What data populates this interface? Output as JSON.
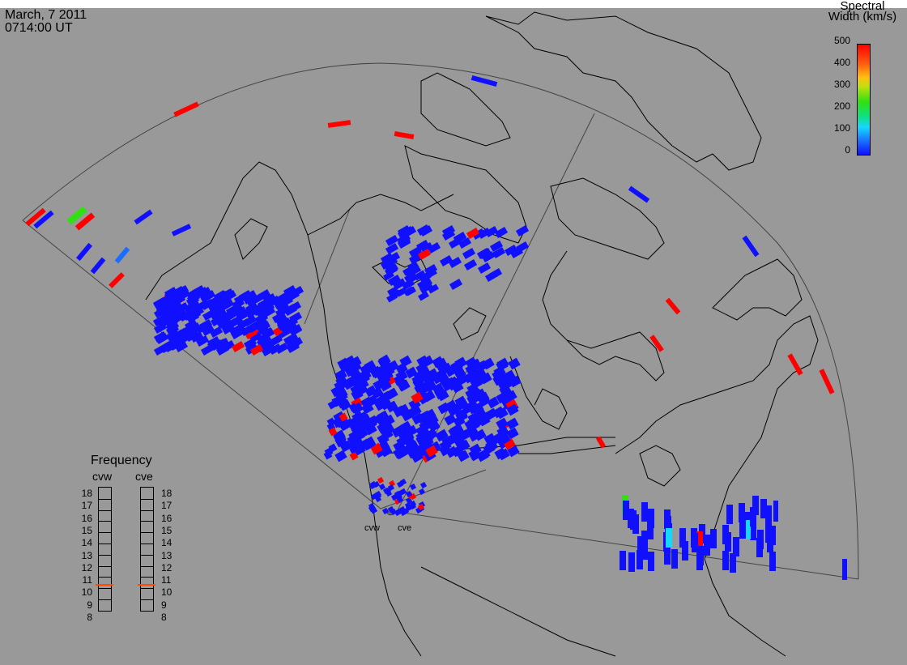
{
  "header": {
    "date": "March, 7 2011",
    "time": "0714:00 UT"
  },
  "legend": {
    "title_line1": "Spectral",
    "title_line2": "Width (km/s)",
    "ticks": [
      "500",
      "400",
      "300",
      "200",
      "100",
      "0"
    ],
    "range": [
      0,
      500
    ],
    "colors": [
      "#1010ff",
      "#15d8ff",
      "#30e010",
      "#ffc010",
      "#ff0000"
    ]
  },
  "frequency_panel": {
    "title": "Frequency",
    "stations": [
      {
        "name": "cvw",
        "frequency_mhz": 10.7
      },
      {
        "name": "cve",
        "frequency_mhz": 10.7
      }
    ],
    "scale": [
      "18",
      "17",
      "16",
      "15",
      "14",
      "13",
      "12",
      "11",
      "10",
      "9",
      "8"
    ]
  },
  "radars": [
    {
      "name": "cvw"
    },
    {
      "name": "cve"
    }
  ],
  "colors": {
    "background": "#999999",
    "scatter_low": "#1010ff",
    "scatter_high": "#ff0000",
    "frequency_marker": "#ff4a00"
  }
}
